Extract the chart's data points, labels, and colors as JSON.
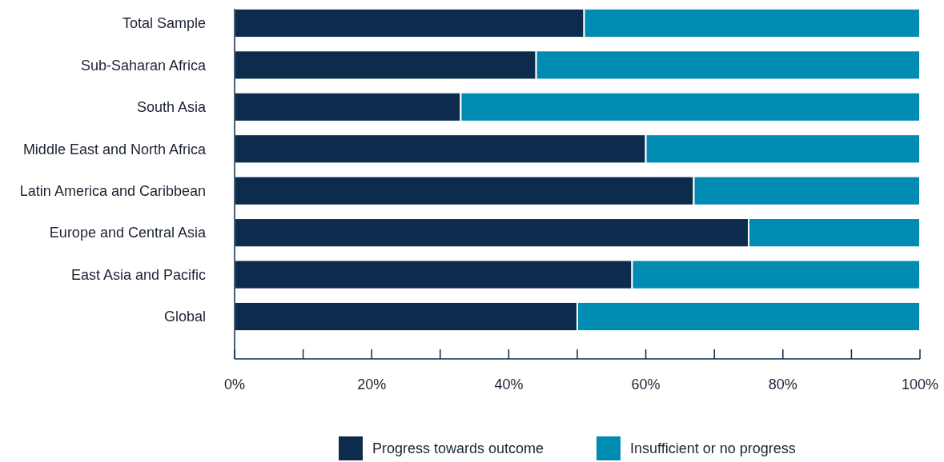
{
  "chart_data": {
    "type": "bar",
    "orientation": "horizontal",
    "stacked": true,
    "categories": [
      "Total Sample",
      "Sub-Saharan Africa",
      "South Asia",
      "Middle East and North Africa",
      "Latin America and Caribbean",
      "Europe and Central Asia",
      "East Asia and Pacific",
      "Global"
    ],
    "series": [
      {
        "name": "Progress towards outcome",
        "color": "#0c2b4d",
        "values": [
          51,
          44,
          33,
          60,
          67,
          75,
          58,
          50
        ]
      },
      {
        "name": "Insufficient or no progress",
        "color": "#008bb2",
        "values": [
          49,
          56,
          67,
          40,
          33,
          25,
          42,
          50
        ]
      }
    ],
    "xlim": [
      0,
      100
    ],
    "xticks": [
      {
        "value": 0,
        "label": "0%"
      },
      {
        "value": 10,
        "label": null
      },
      {
        "value": 20,
        "label": "20%"
      },
      {
        "value": 30,
        "label": null
      },
      {
        "value": 40,
        "label": "40%"
      },
      {
        "value": 50,
        "label": null
      },
      {
        "value": 60,
        "label": "60%"
      },
      {
        "value": 70,
        "label": null
      },
      {
        "value": 80,
        "label": "80%"
      },
      {
        "value": 90,
        "label": null
      },
      {
        "value": 100,
        "label": "100%"
      }
    ],
    "grid": false,
    "legend": "bottom"
  }
}
